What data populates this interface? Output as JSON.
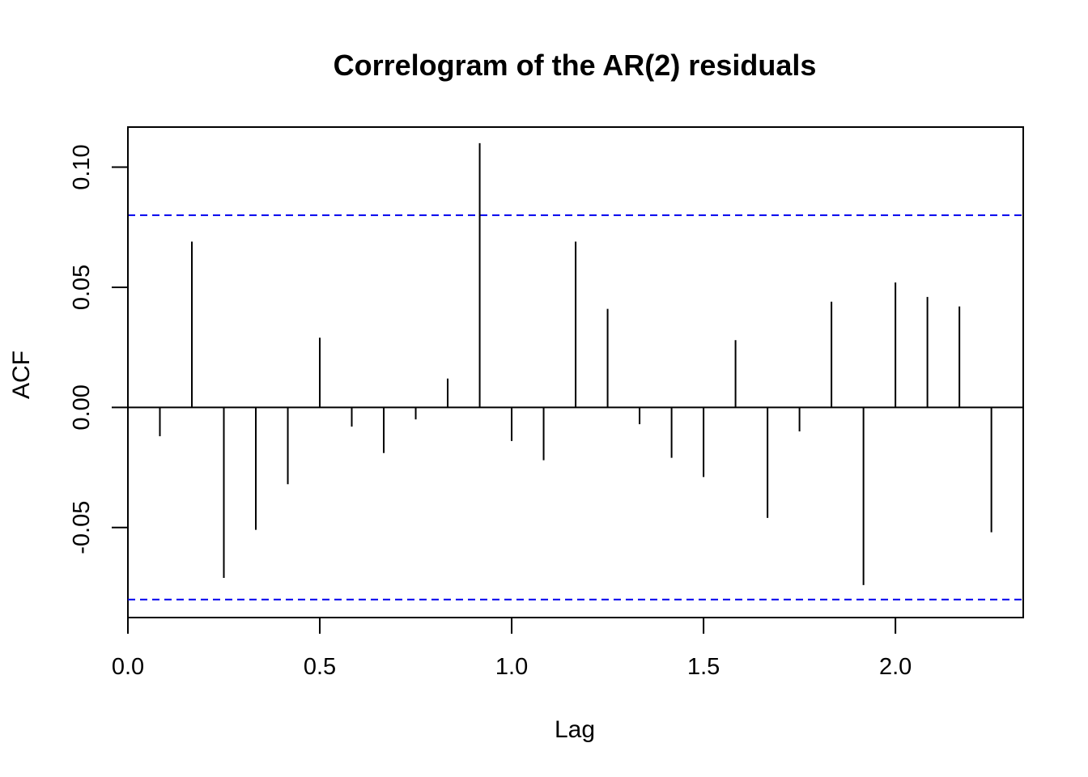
{
  "chart_data": {
    "type": "bar",
    "title": "Correlogram of the AR(2) residuals",
    "xlabel": "Lag",
    "ylabel": "ACF",
    "xlim": [
      0.0,
      2.333
    ],
    "ylim": [
      -0.0875,
      0.1167
    ],
    "x_ticks": [
      0.0,
      0.5,
      1.0,
      1.5,
      2.0
    ],
    "x_tick_labels": [
      "0.0",
      "0.5",
      "1.0",
      "1.5",
      "2.0"
    ],
    "y_ticks": [
      -0.05,
      0.0,
      0.05,
      0.1
    ],
    "y_tick_labels": [
      "-0.05",
      "0.00",
      "0.05",
      "0.10"
    ],
    "confidence_bound": 0.08,
    "confidence_color": "#0000ee",
    "bar_color": "#000000",
    "lags": [
      0.0833,
      0.1667,
      0.25,
      0.3333,
      0.4167,
      0.5,
      0.5833,
      0.6667,
      0.75,
      0.8333,
      0.9167,
      1.0,
      1.0833,
      1.1667,
      1.25,
      1.3333,
      1.4167,
      1.5,
      1.5833,
      1.6667,
      1.75,
      1.8333,
      1.9167,
      2.0,
      2.0833,
      2.1667,
      2.25
    ],
    "acf": [
      -0.012,
      0.069,
      -0.071,
      -0.051,
      -0.032,
      0.029,
      -0.008,
      -0.019,
      -0.005,
      0.012,
      0.11,
      -0.014,
      -0.022,
      0.069,
      0.041,
      -0.007,
      -0.021,
      -0.029,
      0.028,
      -0.046,
      -0.01,
      0.044,
      -0.074,
      0.052,
      0.046,
      0.042,
      -0.052
    ]
  }
}
